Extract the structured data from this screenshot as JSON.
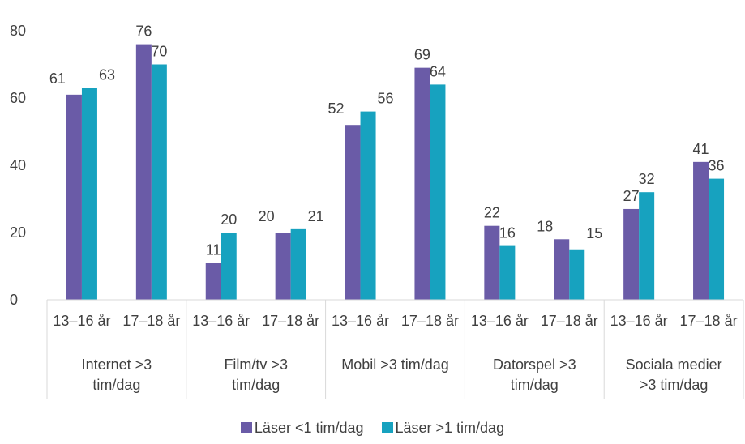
{
  "chart_data": {
    "type": "bar",
    "ylim": [
      0,
      80
    ],
    "yticks": [
      0,
      20,
      40,
      60,
      80
    ],
    "grid": false,
    "legend_position": "bottom",
    "groups": [
      {
        "label": "Internet >3 tim/dag",
        "label_lines": [
          "Internet >3",
          "tim/dag"
        ],
        "categories": [
          "13–16 år",
          "17–18 år"
        ]
      },
      {
        "label": "Film/tv >3 tim/dag",
        "label_lines": [
          "Film/tv >3",
          "tim/dag"
        ],
        "categories": [
          "13–16 år",
          "17–18 år"
        ]
      },
      {
        "label": "Mobil >3 tim/dag",
        "label_lines": [
          "Mobil >3 tim/dag"
        ],
        "categories": [
          "13–16 år",
          "17–18 år"
        ]
      },
      {
        "label": "Datorspel >3 tim/dag",
        "label_lines": [
          "Datorspel >3",
          "tim/dag"
        ],
        "categories": [
          "13–16 år",
          "17–18 år"
        ]
      },
      {
        "label": "Sociala medier >3 tim/dag",
        "label_lines": [
          "Sociala medier",
          ">3 tim/dag"
        ],
        "categories": [
          "13–16 år",
          "17–18 år"
        ]
      }
    ],
    "series": [
      {
        "name": "Läser <1 tim/dag",
        "color": "#6a5ba7",
        "values": [
          61,
          76,
          11,
          20,
          52,
          69,
          22,
          18,
          27,
          41
        ]
      },
      {
        "name": "Läser >1 tim/dag",
        "color": "#17a2bf",
        "values": [
          63,
          70,
          20,
          21,
          56,
          64,
          16,
          15,
          32,
          36
        ]
      }
    ]
  }
}
